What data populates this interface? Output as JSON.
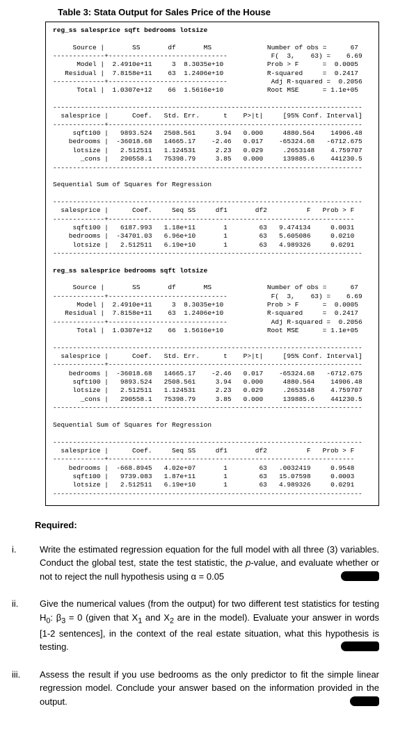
{
  "table_title": "Table 3: Stata Output for Sales Price of the House",
  "cmd1": "reg_ss salesprice sqft bedrooms lotsize",
  "anova1": {
    "headers": "     Source |       SS       df       MS",
    "model": "      Model |  2.4910e+11     3  8.3035e+10",
    "residual": "   Residual |  7.8158e+11    63  1.2406e+10",
    "total": "      Total |  1.0307e+12    66  1.5616e+10",
    "stats": {
      "nobs": "Number of obs =      67",
      "f": "F(  3,    63) =    6.69",
      "prob": "Prob > F      =  0.0005",
      "r2": "R-squared     =  0.2417",
      "adjr2": "Adj R-squared =  0.2056",
      "rmse": "Root MSE      = 1.1e+05"
    }
  },
  "coef1": {
    "header": "  salesprice |      Coef.   Std. Err.      t    P>|t|     [95% Conf. Interval]",
    "r1": "     sqft100 |   9893.524   2508.561     3.94   0.000     4880.564    14906.48",
    "r2": "    bedrooms |  -36018.68   14665.17    -2.46   0.017    -65324.68   -6712.675",
    "r3": "     lotsize |   2.512511   1.124531     2.23   0.029     .2653148    4.759707",
    "r4": "       _cons |   290558.1   75398.79     3.85   0.000     139885.6    441230.5"
  },
  "seq_title": "Sequential Sum of Squares for Regression",
  "seq1": {
    "header": "  salesprice |      Coef.     Seq SS     df1       df2          F   Prob > F",
    "r1": "     sqft100 |   6187.993   1.18e+11       1        63   9.474134     0.0031",
    "r2": "    bedrooms |  -34701.03   6.96e+10       1        63   5.605086     0.0210",
    "r3": "     lotsize |   2.512511   6.19e+10       1        63   4.989326     0.0291"
  },
  "cmd2": "reg_ss salesprice bedrooms sqft lotsize",
  "coef2": {
    "header": "  salesprice |      Coef.   Std. Err.      t    P>|t|     [95% Conf. Interval]",
    "r1": "    bedrooms |  -36018.68   14665.17    -2.46   0.017    -65324.68   -6712.675",
    "r2": "     sqft100 |   9893.524   2508.561     3.94   0.000     4880.564    14906.48",
    "r3": "     lotsize |   2.512511   1.124531     2.23   0.029     .2653148    4.759707",
    "r4": "       _cons |   290558.1   75398.79     3.85   0.000     139885.6    441230.5"
  },
  "seq2": {
    "header": "  salesprice |      Coef.     Seq SS     df1       df2          F   Prob > F",
    "r1": "    bedrooms |  -668.8945   4.02e+07       1        63   .0032419     0.9548",
    "r2": "     sqft100 |   9739.083   1.87e+11       1        63   15.07598     0.0003",
    "r3": "     lotsize |   2.512511   6.19e+10       1        63   4.989326     0.0291"
  },
  "dash_short": "-------------+------------------------------",
  "dash_long": "-------------+----------------------------------------------------------------",
  "dash_seq": "-------------+--------------------------------------------------------------",
  "dash78": "------------------------------------------------------------------------------",
  "required": "Required:",
  "q1_num": "i.",
  "q1_a": "Write the estimated regression equation for the full model with all three (3) variables. Conduct the global test, state the test statistic, the ",
  "q1_b": "p",
  "q1_c": "-value, and evaluate whether or not to reject the null hypothesis using α = 0.05",
  "q2_num": "ii.",
  "q2_a": "Give the numerical values (from the output) for two different test statistics for testing H",
  "q2_b": "0",
  "q2_c": ": β",
  "q2_d": "3",
  "q2_e": " = 0 (given that X",
  "q2_f": "1",
  "q2_g": " and X",
  "q2_h": "2",
  "q2_i": " are in the model). Evaluate your answer in words [1-2 sentences], in the context of the real estate situation, what this hypothesis is testing.",
  "q3_num": "iii.",
  "q3_text": "Assess the result if you use bedrooms as the only predictor to fit the simple linear regression model. Conclude your answer based on the information provided in the output."
}
